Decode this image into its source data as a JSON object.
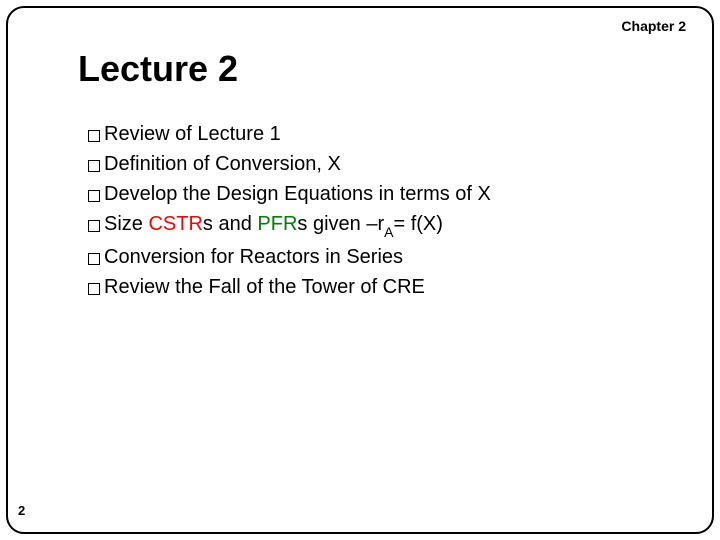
{
  "chapter_label": "Chapter 2",
  "title": "Lecture 2",
  "page_number": "2",
  "colors": {
    "text": "#000000",
    "cstr": "#ff0000",
    "pfr": "#008000",
    "background": "#ffffff",
    "border": "#000000"
  },
  "typography": {
    "title_fontsize": 36,
    "body_fontsize": 20,
    "chapter_fontsize": 14,
    "pagenum_fontsize": 13,
    "font_family": "Arial"
  },
  "bullets": [
    {
      "segments": [
        {
          "t": "Review of Lecture 1",
          "c": "#000000"
        }
      ]
    },
    {
      "segments": [
        {
          "t": "Definition of Conversion, X",
          "c": "#000000"
        }
      ]
    },
    {
      "segments": [
        {
          "t": "Develop the Design Equations in terms of X",
          "c": "#000000"
        }
      ]
    },
    {
      "segments": [
        {
          "t": "Size ",
          "c": "#000000"
        },
        {
          "t": "CSTR",
          "c": "#ff0000"
        },
        {
          "t": "s and ",
          "c": "#000000"
        },
        {
          "t": "PFR",
          "c": "#008000"
        },
        {
          "t": "s given –r",
          "c": "#000000"
        },
        {
          "t": "A",
          "c": "#000000",
          "sub": true
        },
        {
          "t": "= f(X)",
          "c": "#000000"
        }
      ]
    },
    {
      "segments": [
        {
          "t": "Conversion for Reactors in Series",
          "c": "#000000"
        }
      ]
    },
    {
      "segments": [
        {
          "t": "Review the Fall of the Tower of CRE",
          "c": "#000000"
        }
      ]
    }
  ]
}
